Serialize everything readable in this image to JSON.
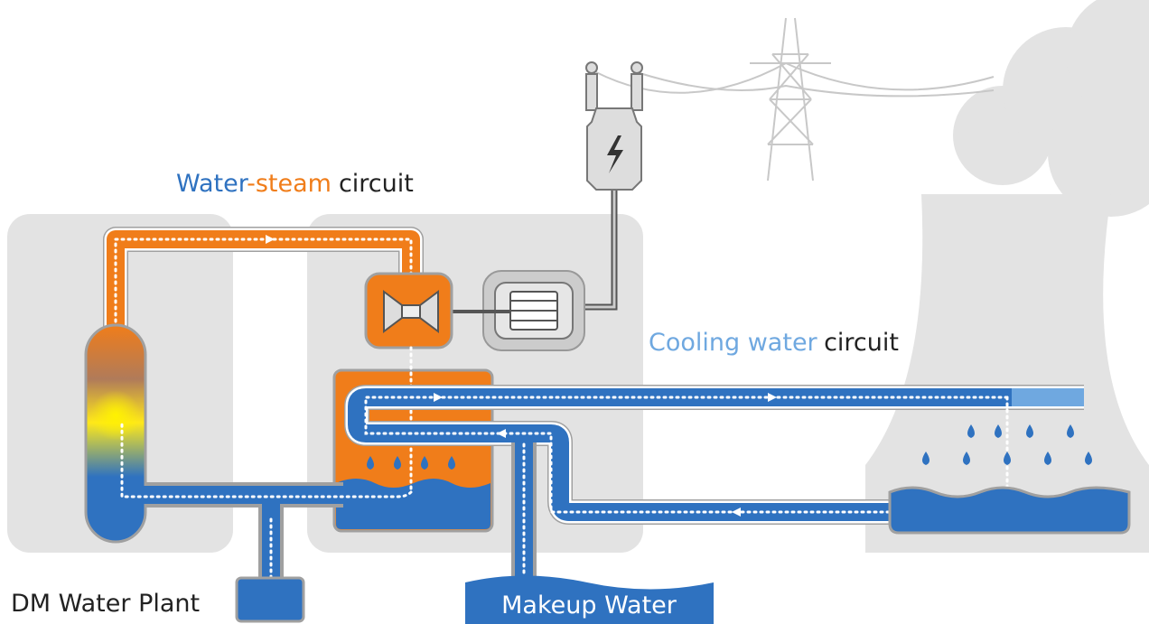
{
  "water_steam_label": {
    "parts": [
      "Water",
      "-steam",
      "circuit"
    ]
  },
  "cooling_label": {
    "parts": [
      "Cooling water",
      "circuit"
    ]
  },
  "dm_water_plant": "DM Water Plant",
  "makeup_water": "Makeup Water"
}
